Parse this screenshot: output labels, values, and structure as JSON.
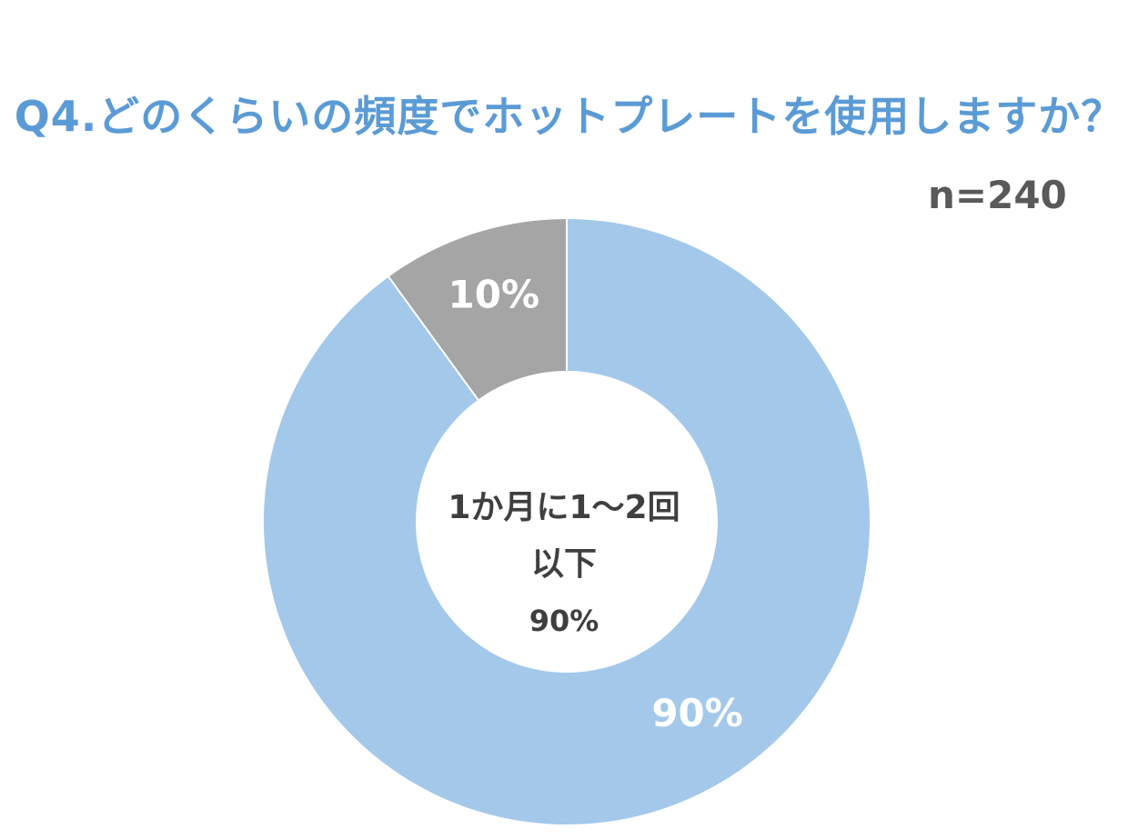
{
  "title": "Q4.どのくらいの頻度でホットプレートを使用しますか？",
  "sample_size": "n=240",
  "colors": {
    "title": "#5b9bd5",
    "primary_slice": "#a3c8ea",
    "secondary_slice": "#a5a5a5",
    "slice_label": "#ffffff",
    "center_text": "#3f3f3f",
    "sample_text": "#595959"
  },
  "chart_data": {
    "type": "pie",
    "donut": true,
    "slices": [
      {
        "value": 90,
        "label": "90%",
        "color": "#a3c8ea"
      },
      {
        "value": 10,
        "label": "10%",
        "color": "#a5a5a5"
      }
    ],
    "center_text": {
      "line1": "1か月に1〜2回",
      "line2": "以下",
      "line3": "90%"
    }
  }
}
